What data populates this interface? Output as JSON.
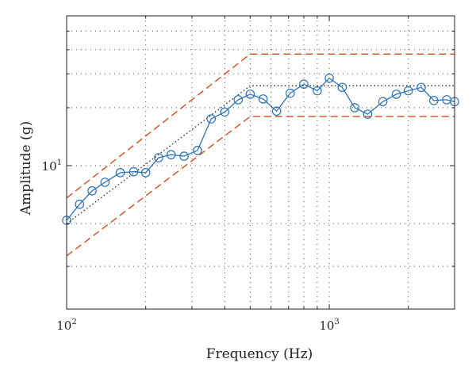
{
  "chart_data": {
    "type": "line",
    "xlabel": "Frequency (Hz)",
    "ylabel": "Amplitude (g)",
    "x_scale": "log",
    "y_scale": "log",
    "xlim": [
      100,
      3000
    ],
    "ylim": [
      1.8,
      60
    ],
    "x_major_ticks": [
      {
        "value": 100,
        "base": "10",
        "exp": "2"
      },
      {
        "value": 1000,
        "base": "10",
        "exp": "3"
      }
    ],
    "y_major_ticks": [
      {
        "value": 10,
        "base": "10",
        "exp": "1"
      }
    ],
    "x_grid": [
      200,
      300,
      400,
      500,
      600,
      700,
      800,
      900,
      2000,
      3000
    ],
    "y_grid": [
      3,
      5,
      20,
      30,
      40,
      50
    ],
    "grid": true,
    "colors": {
      "measured": "#2b73b6",
      "limits": "#d4582a",
      "reference": "#222222",
      "grid": "#555555"
    },
    "series": [
      {
        "role": "measured",
        "style": "solid-line-circle-markers",
        "x": [
          100,
          112,
          125,
          140,
          160,
          180,
          200,
          224,
          250,
          280,
          315,
          355,
          400,
          450,
          500,
          560,
          630,
          710,
          800,
          900,
          1000,
          1120,
          1250,
          1400,
          1600,
          1800,
          2000,
          2240,
          2500,
          2800,
          3000
        ],
        "values": [
          5.2,
          6.3,
          7.4,
          8.2,
          9.2,
          9.3,
          9.2,
          11.0,
          11.4,
          11.2,
          12.0,
          17.5,
          19.0,
          22.0,
          23.5,
          22.2,
          19.2,
          23.8,
          26.5,
          24.5,
          28.5,
          25.5,
          20.0,
          18.5,
          21.5,
          23.5,
          24.5,
          25.5,
          21.8,
          22.0,
          21.5
        ]
      },
      {
        "role": "upper-limit",
        "style": "dashed",
        "x": [
          100,
          500,
          3000
        ],
        "values": [
          6.8,
          38.0,
          38.0
        ]
      },
      {
        "role": "lower-limit",
        "style": "dashed",
        "x": [
          100,
          500,
          3000
        ],
        "values": [
          3.4,
          18.0,
          18.0
        ]
      },
      {
        "role": "reference",
        "style": "dotted",
        "x": [
          100,
          500,
          3000
        ],
        "values": [
          5.0,
          26.0,
          26.0
        ]
      }
    ]
  }
}
